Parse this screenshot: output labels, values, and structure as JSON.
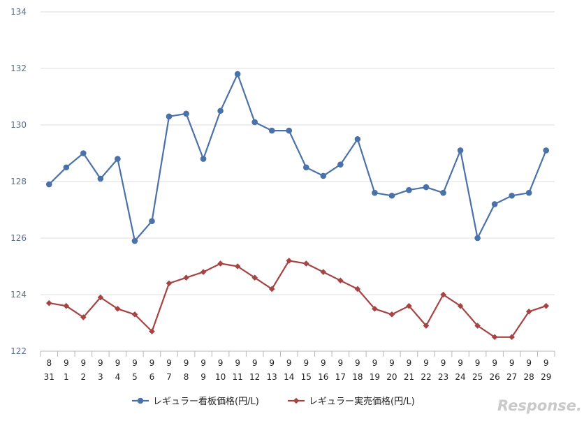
{
  "chart_data": {
    "type": "line",
    "categories": [
      {
        "month": "8",
        "day": "31"
      },
      {
        "month": "9",
        "day": "1"
      },
      {
        "month": "9",
        "day": "2"
      },
      {
        "month": "9",
        "day": "3"
      },
      {
        "month": "9",
        "day": "4"
      },
      {
        "month": "9",
        "day": "5"
      },
      {
        "month": "9",
        "day": "6"
      },
      {
        "month": "9",
        "day": "7"
      },
      {
        "month": "9",
        "day": "8"
      },
      {
        "month": "9",
        "day": "9"
      },
      {
        "month": "9",
        "day": "10"
      },
      {
        "month": "9",
        "day": "11"
      },
      {
        "month": "9",
        "day": "12"
      },
      {
        "month": "9",
        "day": "13"
      },
      {
        "month": "9",
        "day": "14"
      },
      {
        "month": "9",
        "day": "15"
      },
      {
        "month": "9",
        "day": "16"
      },
      {
        "month": "9",
        "day": "17"
      },
      {
        "month": "9",
        "day": "18"
      },
      {
        "month": "9",
        "day": "19"
      },
      {
        "month": "9",
        "day": "20"
      },
      {
        "month": "9",
        "day": "21"
      },
      {
        "month": "9",
        "day": "22"
      },
      {
        "month": "9",
        "day": "23"
      },
      {
        "month": "9",
        "day": "24"
      },
      {
        "month": "9",
        "day": "25"
      },
      {
        "month": "9",
        "day": "26"
      },
      {
        "month": "9",
        "day": "27"
      },
      {
        "month": "9",
        "day": "28"
      },
      {
        "month": "9",
        "day": "29"
      }
    ],
    "series": [
      {
        "name": "レギュラー看板価格(円/L)",
        "color": "#4a72a8",
        "marker": "circle",
        "values": [
          127.9,
          128.5,
          129.0,
          128.1,
          128.8,
          125.9,
          126.6,
          130.3,
          130.4,
          128.8,
          130.5,
          131.8,
          130.1,
          129.8,
          129.8,
          128.5,
          128.2,
          128.6,
          129.5,
          127.6,
          127.5,
          127.7,
          127.8,
          127.6,
          129.1,
          126.0,
          127.2,
          127.5,
          127.6,
          129.1
        ]
      },
      {
        "name": "レギュラー実売価格(円/L)",
        "color": "#a64343",
        "marker": "diamond",
        "values": [
          123.7,
          123.6,
          123.2,
          123.9,
          123.5,
          123.3,
          122.7,
          124.4,
          124.6,
          124.8,
          125.1,
          125.0,
          124.6,
          124.2,
          125.2,
          125.1,
          124.8,
          124.5,
          124.2,
          123.5,
          123.3,
          123.6,
          122.9,
          124.0,
          123.6,
          122.9,
          122.5,
          122.5,
          123.4,
          123.6
        ]
      }
    ],
    "ylim": [
      122,
      134
    ],
    "yticks": [
      "122",
      "124",
      "126",
      "128",
      "130",
      "132",
      "134"
    ],
    "grid": true,
    "legend_position": "bottom"
  },
  "watermark": {
    "text": "Response."
  }
}
